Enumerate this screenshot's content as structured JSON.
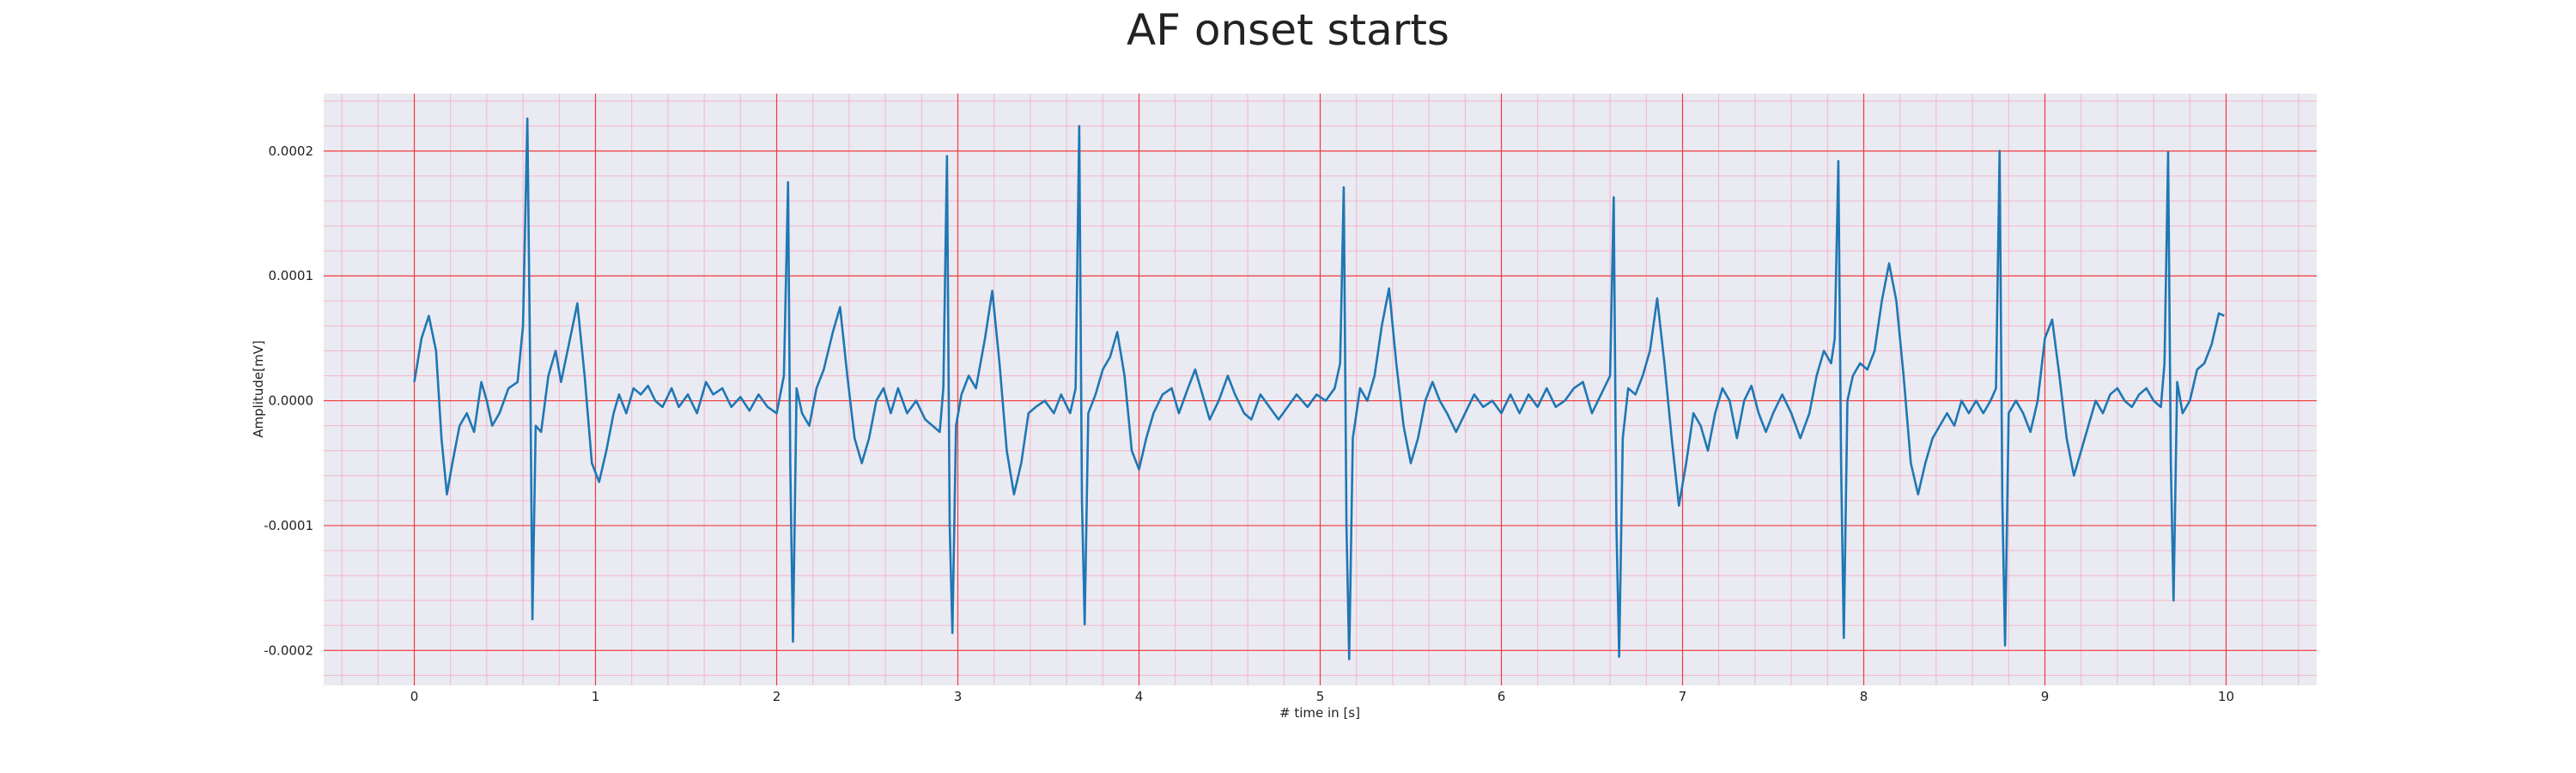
{
  "chart_data": {
    "type": "line",
    "title": "AF onset starts",
    "xlabel": "# time in [s]",
    "ylabel": "Amplitude[mV]",
    "color": "#1f77b4",
    "grid": true,
    "minor_grid": true,
    "xlim": [
      -0.5,
      10.5
    ],
    "xticks": [
      0,
      1,
      2,
      3,
      4,
      5,
      6,
      7,
      8,
      9,
      10
    ],
    "ylim": [
      -0.000228,
      0.000246
    ],
    "yticks": [
      {
        "value": -0.0002,
        "label": "-0.0002"
      },
      {
        "value": -0.0001,
        "label": "-0.0001"
      },
      {
        "value": 0,
        "label": "0.0000"
      },
      {
        "value": 0.0001,
        "label": "0.0001"
      },
      {
        "value": 0.0002,
        "label": "0.0002"
      }
    ],
    "x": [
      0.0,
      0.04,
      0.08,
      0.12,
      0.15,
      0.18,
      0.21,
      0.25,
      0.29,
      0.33,
      0.37,
      0.4,
      0.43,
      0.47,
      0.52,
      0.57,
      0.6,
      0.624,
      0.64,
      0.652,
      0.67,
      0.7,
      0.74,
      0.78,
      0.81,
      0.86,
      0.9,
      0.94,
      0.98,
      1.02,
      1.06,
      1.1,
      1.13,
      1.17,
      1.21,
      1.25,
      1.29,
      1.33,
      1.37,
      1.42,
      1.46,
      1.51,
      1.56,
      1.61,
      1.65,
      1.7,
      1.75,
      1.8,
      1.85,
      1.9,
      1.95,
      2.0,
      2.04,
      2.063,
      2.075,
      2.09,
      2.11,
      2.14,
      2.18,
      2.22,
      2.26,
      2.31,
      2.35,
      2.39,
      2.43,
      2.47,
      2.51,
      2.55,
      2.59,
      2.63,
      2.67,
      2.72,
      2.77,
      2.82,
      2.86,
      2.9,
      2.92,
      2.94,
      2.955,
      2.97,
      2.99,
      3.02,
      3.06,
      3.1,
      3.15,
      3.19,
      3.23,
      3.27,
      3.31,
      3.35,
      3.39,
      3.43,
      3.48,
      3.53,
      3.57,
      3.62,
      3.65,
      3.67,
      3.685,
      3.7,
      3.72,
      3.76,
      3.8,
      3.84,
      3.88,
      3.92,
      3.96,
      4.0,
      4.04,
      4.08,
      4.13,
      4.18,
      4.22,
      4.27,
      4.31,
      4.35,
      4.39,
      4.44,
      4.49,
      4.53,
      4.58,
      4.62,
      4.67,
      4.72,
      4.77,
      4.82,
      4.87,
      4.93,
      4.98,
      5.03,
      5.08,
      5.11,
      5.13,
      5.145,
      5.16,
      5.18,
      5.22,
      5.26,
      5.3,
      5.34,
      5.38,
      5.42,
      5.46,
      5.5,
      5.54,
      5.58,
      5.62,
      5.66,
      5.7,
      5.75,
      5.8,
      5.85,
      5.9,
      5.95,
      6.0,
      6.05,
      6.1,
      6.15,
      6.2,
      6.25,
      6.3,
      6.35,
      6.4,
      6.45,
      6.5,
      6.55,
      6.6,
      6.62,
      6.635,
      6.65,
      6.67,
      6.7,
      6.74,
      6.78,
      6.82,
      6.86,
      6.9,
      6.94,
      6.98,
      7.02,
      7.06,
      7.1,
      7.14,
      7.18,
      7.22,
      7.26,
      7.3,
      7.34,
      7.38,
      7.42,
      7.46,
      7.5,
      7.55,
      7.6,
      7.65,
      7.7,
      7.74,
      7.78,
      7.82,
      7.84,
      7.86,
      7.875,
      7.89,
      7.91,
      7.94,
      7.98,
      8.02,
      8.06,
      8.1,
      8.14,
      8.18,
      8.22,
      8.26,
      8.3,
      8.34,
      8.38,
      8.42,
      8.46,
      8.5,
      8.54,
      8.58,
      8.62,
      8.66,
      8.7,
      8.73,
      8.75,
      8.765,
      8.78,
      8.8,
      8.84,
      8.88,
      8.92,
      8.96,
      9.0,
      9.04,
      9.08,
      9.12,
      9.16,
      9.2,
      9.24,
      9.28,
      9.32,
      9.36,
      9.4,
      9.44,
      9.48,
      9.52,
      9.56,
      9.6,
      9.64,
      9.66,
      9.68,
      9.695,
      9.71,
      9.73,
      9.76,
      9.8,
      9.84,
      9.88,
      9.92,
      9.96,
      9.99
    ],
    "values": [
      1.5e-05,
      5e-05,
      6.8e-05,
      4e-05,
      -3e-05,
      -7.5e-05,
      -5e-05,
      -2e-05,
      -1e-05,
      -2.5e-05,
      1.5e-05,
      0,
      -2e-05,
      -1e-05,
      1e-05,
      1.5e-05,
      6e-05,
      0.000226,
      2e-05,
      -0.000175,
      -2e-05,
      -2.5e-05,
      2e-05,
      4e-05,
      1.5e-05,
      5e-05,
      7.8e-05,
      2e-05,
      -5e-05,
      -6.5e-05,
      -4e-05,
      -1e-05,
      5e-06,
      -1e-05,
      1e-05,
      5e-06,
      1.2e-05,
      0,
      -5e-06,
      1e-05,
      -5e-06,
      5e-06,
      -1e-05,
      1.5e-05,
      5e-06,
      1e-05,
      -5e-06,
      3e-06,
      -8e-06,
      5e-06,
      -5e-06,
      -1e-05,
      2e-05,
      0.000175,
      -5e-05,
      -0.000193,
      1e-05,
      -1e-05,
      -2e-05,
      1e-05,
      2.5e-05,
      5.5e-05,
      7.5e-05,
      2e-05,
      -3e-05,
      -5e-05,
      -3e-05,
      0,
      1e-05,
      -1e-05,
      1e-05,
      -1e-05,
      0,
      -1.5e-05,
      -2e-05,
      -2.5e-05,
      1e-05,
      0.000196,
      -0.0001,
      -0.000186,
      -2e-05,
      5e-06,
      2e-05,
      1e-05,
      5e-05,
      8.8e-05,
      3e-05,
      -4e-05,
      -7.5e-05,
      -5e-05,
      -1e-05,
      -5e-06,
      0,
      -1e-05,
      5e-06,
      -1e-05,
      1e-05,
      0.00022,
      -8e-05,
      -0.000179,
      -1e-05,
      5e-06,
      2.5e-05,
      3.5e-05,
      5.5e-05,
      2e-05,
      -4e-05,
      -5.5e-05,
      -3e-05,
      -1e-05,
      5e-06,
      1e-05,
      -1e-05,
      1e-05,
      2.5e-05,
      5e-06,
      -1.5e-05,
      0,
      2e-05,
      5e-06,
      -1e-05,
      -1.5e-05,
      5e-06,
      -5e-06,
      -1.5e-05,
      -5e-06,
      5e-06,
      -5e-06,
      5e-06,
      0,
      1e-05,
      3e-05,
      0.000171,
      -0.0001,
      -0.000207,
      -3e-05,
      1e-05,
      0,
      2e-05,
      6e-05,
      9e-05,
      3e-05,
      -2e-05,
      -5e-05,
      -3e-05,
      0,
      1.5e-05,
      0,
      -1e-05,
      -2.5e-05,
      -1e-05,
      5e-06,
      -5e-06,
      0,
      -1e-05,
      5e-06,
      -1e-05,
      5e-06,
      -5e-06,
      1e-05,
      -5e-06,
      0,
      1e-05,
      1.5e-05,
      -1e-05,
      5e-06,
      2e-05,
      0.000163,
      -0.0001,
      -0.000205,
      -3e-05,
      1e-05,
      5e-06,
      2e-05,
      4e-05,
      8.2e-05,
      3e-05,
      -3e-05,
      -8.4e-05,
      -5e-05,
      -1e-05,
      -2e-05,
      -4e-05,
      -1e-05,
      1e-05,
      0,
      -3e-05,
      0,
      1.2e-05,
      -1e-05,
      -2.5e-05,
      -1e-05,
      5e-06,
      -1e-05,
      -3e-05,
      -1e-05,
      2e-05,
      4e-05,
      3e-05,
      5e-05,
      0.000192,
      -5e-05,
      -0.00019,
      0,
      2e-05,
      3e-05,
      2.5e-05,
      4e-05,
      8e-05,
      0.00011,
      8e-05,
      2e-05,
      -5e-05,
      -7.5e-05,
      -5e-05,
      -3e-05,
      -2e-05,
      -1e-05,
      -2e-05,
      0,
      -1e-05,
      0,
      -1e-05,
      0,
      1e-05,
      0.0002,
      -8e-05,
      -0.000196,
      -1e-05,
      0,
      -1e-05,
      -2.5e-05,
      0,
      5e-05,
      6.5e-05,
      2e-05,
      -3e-05,
      -6e-05,
      -4e-05,
      -2e-05,
      0,
      -1e-05,
      5e-06,
      1e-05,
      0,
      -5e-06,
      5e-06,
      1e-05,
      0,
      -5e-06,
      3e-05,
      0.000199,
      -5e-05,
      -0.00016,
      1.5e-05,
      -1e-05,
      0,
      2.5e-05,
      3e-05,
      4.5e-05,
      7e-05,
      6.8e-05
    ]
  }
}
